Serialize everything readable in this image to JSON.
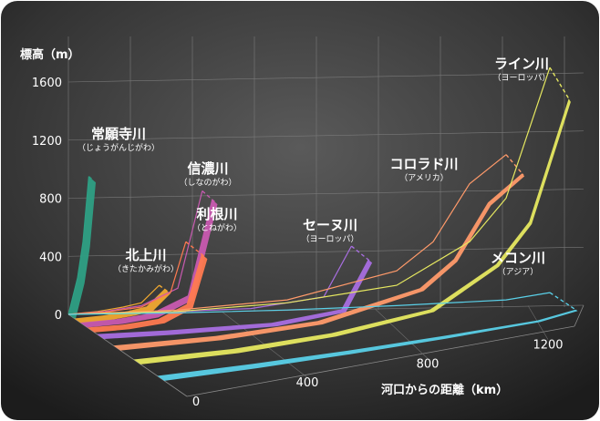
{
  "chart_data": {
    "type": "line",
    "ylabel": "標高（m）",
    "xlabel": "河口からの距離（km）",
    "y_ticks": [
      "0",
      "400",
      "800",
      "1200",
      "1600"
    ],
    "x_ticks": [
      "0",
      "400",
      "800",
      "1200"
    ],
    "ylim": [
      0,
      1600
    ],
    "xlim": [
      0,
      1300
    ],
    "grid": true,
    "series": [
      {
        "name": "常願寺川",
        "reading": "（じょうがんじがわ）",
        "color": "#2e9f84",
        "points": [
          [
            0,
            0
          ],
          [
            10,
            100
          ],
          [
            25,
            250
          ],
          [
            40,
            500
          ],
          [
            56,
            950
          ]
        ]
      },
      {
        "name": "北上川",
        "reading": "（きたかみがわ）",
        "color": "#f0a830",
        "points": [
          [
            0,
            0
          ],
          [
            80,
            20
          ],
          [
            150,
            50
          ],
          [
            200,
            80
          ],
          [
            249,
            200
          ]
        ]
      },
      {
        "name": "信濃川",
        "reading": "（しなのがわ）",
        "color": "#c85ab0",
        "points": [
          [
            0,
            0
          ],
          [
            100,
            20
          ],
          [
            200,
            60
          ],
          [
            300,
            180
          ],
          [
            367,
            850
          ]
        ]
      },
      {
        "name": "利根川",
        "reading": "（とねがわ）",
        "color": "#ff7a50",
        "points": [
          [
            0,
            0
          ],
          [
            100,
            15
          ],
          [
            200,
            50
          ],
          [
            280,
            150
          ],
          [
            322,
            500
          ]
        ]
      },
      {
        "name": "セーヌ川",
        "reading": "（ヨーロッパ）",
        "color": "#a86ee0",
        "points": [
          [
            0,
            0
          ],
          [
            200,
            10
          ],
          [
            500,
            40
          ],
          [
            700,
            120
          ],
          [
            776,
            470
          ]
        ]
      },
      {
        "name": "コロラド川",
        "reading": "（アメリカ）",
        "color": "#ff9a6a",
        "points": [
          [
            0,
            0
          ],
          [
            300,
            30
          ],
          [
            600,
            100
          ],
          [
            900,
            300
          ],
          [
            1000,
            500
          ],
          [
            1100,
            900
          ],
          [
            1200,
            1100
          ]
        ]
      },
      {
        "name": "ライン川",
        "reading": "（ヨーロッパ）",
        "color": "#e6e860",
        "points": [
          [
            0,
            0
          ],
          [
            300,
            20
          ],
          [
            600,
            80
          ],
          [
            900,
            200
          ],
          [
            1100,
            500
          ],
          [
            1200,
            800
          ],
          [
            1320,
            1700
          ]
        ]
      },
      {
        "name": "メコン川",
        "reading": "（アジア）",
        "color": "#5ad0e8",
        "points": [
          [
            0,
            0
          ],
          [
            300,
            10
          ],
          [
            600,
            30
          ],
          [
            900,
            60
          ],
          [
            1200,
            100
          ],
          [
            1320,
            150
          ]
        ]
      }
    ]
  }
}
